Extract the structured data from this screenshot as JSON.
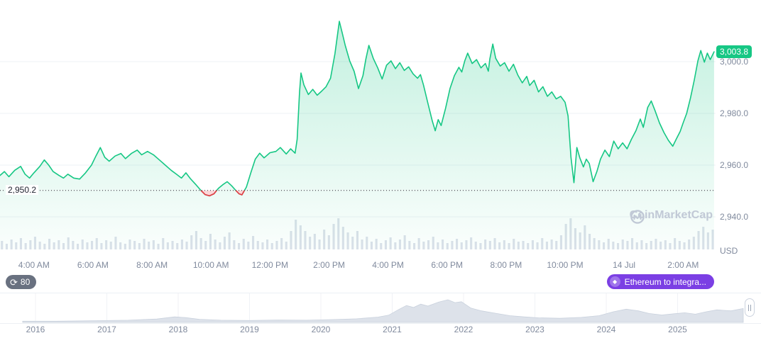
{
  "colors": {
    "green": "#16c784",
    "red": "#ea3943",
    "purple": "#7b3fe4",
    "axis_text": "#808a9d",
    "volume": "#dce1ea",
    "nav_fill": "#dde2ea",
    "grid": "#eef1f6"
  },
  "price_axis": {
    "current_badge": "3,003.8",
    "open_label": "2,950.2",
    "currency": "USD"
  },
  "badges": {
    "countdown": "80",
    "flash": "Ethereum to integra..."
  },
  "watermark": "CoinMarketCap",
  "chart_data": {
    "type": "area",
    "title": "Intraday cryptocurrency price chart with volume and 10-year range navigator",
    "unit": "USD",
    "open_price": 2950.2,
    "last_price": 3003.8,
    "ylim": [
      2934,
      3024
    ],
    "grid": true,
    "y_ticks": [
      {
        "v": 3000,
        "label": "3,000.0"
      },
      {
        "v": 2980,
        "label": "2,980.0"
      },
      {
        "v": 2960,
        "label": "2,960.0"
      },
      {
        "v": 2940,
        "label": "2,940.0"
      }
    ],
    "x_ticks": [
      {
        "t": 4,
        "label": "4:00 AM"
      },
      {
        "t": 6,
        "label": "6:00 AM"
      },
      {
        "t": 8,
        "label": "8:00 AM"
      },
      {
        "t": 10,
        "label": "10:00 AM"
      },
      {
        "t": 12,
        "label": "12:00 PM"
      },
      {
        "t": 14,
        "label": "2:00 PM"
      },
      {
        "t": 16,
        "label": "4:00 PM"
      },
      {
        "t": 18,
        "label": "6:00 PM"
      },
      {
        "t": 20,
        "label": "8:00 PM"
      },
      {
        "t": 22,
        "label": "10:00 PM"
      },
      {
        "t": 24,
        "label": "14 Jul"
      },
      {
        "t": 26,
        "label": "2:00 AM"
      }
    ],
    "price_series": {
      "x_unit": "hour_of_day_decimal_24h_window",
      "points": [
        [
          2.85,
          2956
        ],
        [
          3,
          2957.5
        ],
        [
          3.15,
          2955.5
        ],
        [
          3.35,
          2958
        ],
        [
          3.55,
          2959.5
        ],
        [
          3.7,
          2956.5
        ],
        [
          3.85,
          2955
        ],
        [
          4,
          2957
        ],
        [
          4.2,
          2959.5
        ],
        [
          4.35,
          2962
        ],
        [
          4.5,
          2960
        ],
        [
          4.65,
          2957.5
        ],
        [
          4.85,
          2956
        ],
        [
          5,
          2955
        ],
        [
          5.15,
          2956.5
        ],
        [
          5.35,
          2955
        ],
        [
          5.55,
          2954.6
        ],
        [
          5.75,
          2957
        ],
        [
          5.95,
          2960
        ],
        [
          6.1,
          2963.5
        ],
        [
          6.25,
          2966.8
        ],
        [
          6.4,
          2963
        ],
        [
          6.55,
          2961.5
        ],
        [
          6.75,
          2963.5
        ],
        [
          6.95,
          2964.5
        ],
        [
          7.1,
          2962.5
        ],
        [
          7.3,
          2964.5
        ],
        [
          7.5,
          2965.8
        ],
        [
          7.65,
          2964
        ],
        [
          7.85,
          2965.3
        ],
        [
          8.05,
          2964
        ],
        [
          8.25,
          2962
        ],
        [
          8.45,
          2960
        ],
        [
          8.65,
          2958
        ],
        [
          8.85,
          2956.3
        ],
        [
          9,
          2955
        ],
        [
          9.15,
          2957
        ],
        [
          9.3,
          2954.8
        ],
        [
          9.5,
          2952.3
        ],
        [
          9.65,
          2950.3
        ],
        [
          9.8,
          2948.6
        ],
        [
          9.95,
          2948.1
        ],
        [
          10.1,
          2948.9
        ],
        [
          10.25,
          2951
        ],
        [
          10.4,
          2952.4
        ],
        [
          10.55,
          2953.6
        ],
        [
          10.7,
          2952
        ],
        [
          10.85,
          2950.1
        ],
        [
          10.95,
          2948.9
        ],
        [
          11.05,
          2948.5
        ],
        [
          11.2,
          2951.5
        ],
        [
          11.35,
          2957
        ],
        [
          11.5,
          2962.3
        ],
        [
          11.65,
          2964.6
        ],
        [
          11.8,
          2962.8
        ],
        [
          12,
          2964.8
        ],
        [
          12.2,
          2965.3
        ],
        [
          12.35,
          2966.8
        ],
        [
          12.55,
          2964.3
        ],
        [
          12.7,
          2966.3
        ],
        [
          12.85,
          2964.6
        ],
        [
          12.92,
          2970
        ],
        [
          13,
          2988
        ],
        [
          13.05,
          2995.6
        ],
        [
          13.15,
          2991
        ],
        [
          13.3,
          2987.3
        ],
        [
          13.45,
          2989.3
        ],
        [
          13.6,
          2987
        ],
        [
          13.75,
          2988.6
        ],
        [
          13.9,
          2990.3
        ],
        [
          14.05,
          2993.6
        ],
        [
          14.2,
          3003
        ],
        [
          14.35,
          3015.6
        ],
        [
          14.45,
          3011
        ],
        [
          14.55,
          3006.3
        ],
        [
          14.7,
          3000.3
        ],
        [
          14.85,
          2996.3
        ],
        [
          15,
          2989.6
        ],
        [
          15.15,
          2994.6
        ],
        [
          15.25,
          3001
        ],
        [
          15.35,
          3006.3
        ],
        [
          15.5,
          3001.3
        ],
        [
          15.65,
          2997.6
        ],
        [
          15.8,
          2993.3
        ],
        [
          15.95,
          2998.6
        ],
        [
          16.1,
          3000.3
        ],
        [
          16.25,
          2997.3
        ],
        [
          16.4,
          2999.6
        ],
        [
          16.55,
          2996.6
        ],
        [
          16.7,
          2998
        ],
        [
          16.85,
          2995.3
        ],
        [
          17,
          2993.6
        ],
        [
          17.1,
          2995
        ],
        [
          17.2,
          2991
        ],
        [
          17.35,
          2984
        ],
        [
          17.5,
          2977
        ],
        [
          17.6,
          2973.3
        ],
        [
          17.7,
          2977.6
        ],
        [
          17.8,
          2975.3
        ],
        [
          17.95,
          2982
        ],
        [
          18.1,
          2989.6
        ],
        [
          18.25,
          2994.6
        ],
        [
          18.4,
          2997.8
        ],
        [
          18.5,
          2996
        ],
        [
          18.6,
          3000.3
        ],
        [
          18.7,
          3003.3
        ],
        [
          18.85,
          2999.3
        ],
        [
          19,
          3000.8
        ],
        [
          19.15,
          2997.6
        ],
        [
          19.3,
          2999.3
        ],
        [
          19.4,
          2996.3
        ],
        [
          19.45,
          3001
        ],
        [
          19.55,
          3006.8
        ],
        [
          19.65,
          3001.3
        ],
        [
          19.8,
          2998.3
        ],
        [
          19.95,
          2999.6
        ],
        [
          20.1,
          2996.3
        ],
        [
          20.25,
          2999
        ],
        [
          20.4,
          2994.8
        ],
        [
          20.55,
          2991.8
        ],
        [
          20.7,
          2994.3
        ],
        [
          20.8,
          2990.8
        ],
        [
          20.95,
          2992.8
        ],
        [
          21.1,
          2988.3
        ],
        [
          21.25,
          2990.3
        ],
        [
          21.4,
          2986.6
        ],
        [
          21.55,
          2988.3
        ],
        [
          21.7,
          2985.6
        ],
        [
          21.85,
          2986.6
        ],
        [
          22,
          2984.3
        ],
        [
          22.1,
          2979
        ],
        [
          22.2,
          2963
        ],
        [
          22.3,
          2953.2
        ],
        [
          22.4,
          2966.8
        ],
        [
          22.5,
          2962.8
        ],
        [
          22.62,
          2959.3
        ],
        [
          22.72,
          2962.3
        ],
        [
          22.82,
          2960.6
        ],
        [
          22.95,
          2953.6
        ],
        [
          23.08,
          2957.6
        ],
        [
          23.2,
          2962.3
        ],
        [
          23.35,
          2965.8
        ],
        [
          23.5,
          2963.3
        ],
        [
          23.65,
          2969.3
        ],
        [
          23.8,
          2966.3
        ],
        [
          23.95,
          2968.6
        ],
        [
          24.1,
          2966.3
        ],
        [
          24.25,
          2970
        ],
        [
          24.4,
          2973.3
        ],
        [
          24.55,
          2977.8
        ],
        [
          24.65,
          2974.6
        ],
        [
          24.8,
          2982.3
        ],
        [
          24.92,
          2984.8
        ],
        [
          25.05,
          2981
        ],
        [
          25.2,
          2976.3
        ],
        [
          25.35,
          2972.6
        ],
        [
          25.5,
          2969.6
        ],
        [
          25.65,
          2967.3
        ],
        [
          25.78,
          2970.3
        ],
        [
          25.9,
          2973
        ],
        [
          26,
          2976.3
        ],
        [
          26.12,
          2980
        ],
        [
          26.25,
          2986
        ],
        [
          26.38,
          2993
        ],
        [
          26.5,
          3000.3
        ],
        [
          26.6,
          3004.3
        ],
        [
          26.72,
          2999.8
        ],
        [
          26.82,
          3003.3
        ],
        [
          26.92,
          3000.8
        ],
        [
          27.05,
          3003.8
        ]
      ]
    },
    "volume": [
      12,
      8,
      14,
      10,
      16,
      9,
      13,
      18,
      11,
      8,
      15,
      10,
      13,
      9,
      17,
      12,
      8,
      14,
      10,
      12,
      16,
      9,
      13,
      11,
      18,
      10,
      8,
      14,
      12,
      9,
      15,
      11,
      13,
      8,
      16,
      10,
      12,
      9,
      14,
      11,
      20,
      26,
      16,
      12,
      22,
      14,
      10,
      18,
      24,
      13,
      9,
      15,
      11,
      19,
      12,
      10,
      14,
      9,
      12,
      16,
      11,
      26,
      42,
      34,
      26,
      18,
      22,
      14,
      28,
      20,
      36,
      44,
      32,
      24,
      18,
      26,
      14,
      18,
      11,
      15,
      9,
      13,
      17,
      10,
      14,
      20,
      12,
      9,
      16,
      11,
      13,
      18,
      10,
      14,
      9,
      12,
      15,
      10,
      13,
      17,
      11,
      9,
      14,
      12,
      16,
      10,
      13,
      9,
      15,
      11,
      12,
      9,
      13,
      10,
      16,
      11,
      14,
      12,
      20,
      36,
      44,
      30,
      24,
      34,
      22,
      16,
      13,
      10,
      15,
      11,
      9,
      14,
      12,
      16,
      10,
      13,
      9,
      12,
      15,
      11,
      13,
      9,
      16,
      12,
      10,
      14,
      18,
      26,
      32,
      24,
      28
    ],
    "navigator": {
      "years": [
        {
          "year": 2016,
          "label": "2016"
        },
        {
          "year": 2017,
          "label": "2017"
        },
        {
          "year": 2018,
          "label": "2018"
        },
        {
          "year": 2019,
          "label": "2019"
        },
        {
          "year": 2020,
          "label": "2020"
        },
        {
          "year": 2021,
          "label": "2021"
        },
        {
          "year": 2022,
          "label": "2022"
        },
        {
          "year": 2023,
          "label": "2023"
        },
        {
          "year": 2024,
          "label": "2024"
        },
        {
          "year": 2025,
          "label": "2025"
        }
      ],
      "series": [
        [
          2015.82,
          0.05
        ],
        [
          2016.3,
          0.05
        ],
        [
          2016.8,
          0.07
        ],
        [
          2017.3,
          0.09
        ],
        [
          2017.7,
          0.14
        ],
        [
          2017.95,
          0.23
        ],
        [
          2018.1,
          0.2
        ],
        [
          2018.3,
          0.13
        ],
        [
          2018.6,
          0.09
        ],
        [
          2019.0,
          0.08
        ],
        [
          2019.4,
          0.1
        ],
        [
          2019.8,
          0.09
        ],
        [
          2020.2,
          0.12
        ],
        [
          2020.5,
          0.15
        ],
        [
          2020.8,
          0.22
        ],
        [
          2020.95,
          0.3
        ],
        [
          2021.1,
          0.55
        ],
        [
          2021.2,
          0.7
        ],
        [
          2021.3,
          0.62
        ],
        [
          2021.4,
          0.76
        ],
        [
          2021.5,
          0.68
        ],
        [
          2021.65,
          0.84
        ],
        [
          2021.78,
          0.94
        ],
        [
          2021.88,
          0.82
        ],
        [
          2021.97,
          0.86
        ],
        [
          2022.1,
          0.6
        ],
        [
          2022.25,
          0.48
        ],
        [
          2022.45,
          0.38
        ],
        [
          2022.65,
          0.28
        ],
        [
          2022.85,
          0.23
        ],
        [
          2023.05,
          0.19
        ],
        [
          2023.35,
          0.17
        ],
        [
          2023.65,
          0.21
        ],
        [
          2023.9,
          0.28
        ],
        [
          2024.1,
          0.44
        ],
        [
          2024.28,
          0.55
        ],
        [
          2024.45,
          0.48
        ],
        [
          2024.6,
          0.37
        ],
        [
          2024.78,
          0.31
        ],
        [
          2024.95,
          0.36
        ],
        [
          2025.1,
          0.4
        ],
        [
          2025.25,
          0.34
        ],
        [
          2025.4,
          0.44
        ],
        [
          2025.55,
          0.52
        ],
        [
          2025.75,
          0.48
        ],
        [
          2025.92,
          0.58
        ]
      ]
    }
  }
}
